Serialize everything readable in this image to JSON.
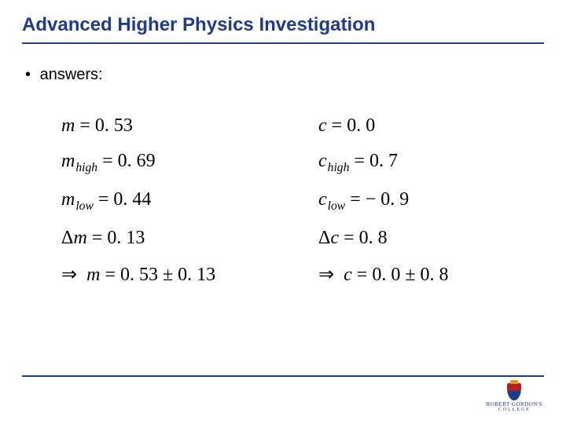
{
  "title": "Advanced Higher Physics Investigation",
  "bullet": {
    "marker": "•",
    "text": "answers:"
  },
  "colors": {
    "title": "#1f3b8f",
    "rule": "#1f3b8f",
    "text": "#000000",
    "background": "#ffffff"
  },
  "equations": {
    "left": [
      {
        "var": "m",
        "sub": "",
        "delta": false,
        "implies": false,
        "rhs": "0. 53"
      },
      {
        "var": "m",
        "sub": "high",
        "delta": false,
        "implies": false,
        "rhs": "0. 69"
      },
      {
        "var": "m",
        "sub": "low",
        "delta": false,
        "implies": false,
        "rhs": "0. 44"
      },
      {
        "var": "m",
        "sub": "",
        "delta": true,
        "implies": false,
        "rhs": "0. 13"
      },
      {
        "var": "m",
        "sub": "",
        "delta": false,
        "implies": true,
        "rhs": "0. 53 ± 0. 13"
      }
    ],
    "right": [
      {
        "var": "c",
        "sub": "",
        "delta": false,
        "implies": false,
        "rhs": "0. 0"
      },
      {
        "var": "c",
        "sub": "high",
        "delta": false,
        "implies": false,
        "rhs": "0. 7"
      },
      {
        "var": "c",
        "sub": "low",
        "delta": false,
        "implies": false,
        "rhs": "− 0. 9"
      },
      {
        "var": "c",
        "sub": "",
        "delta": true,
        "implies": false,
        "rhs": "0. 8"
      },
      {
        "var": "c",
        "sub": "",
        "delta": false,
        "implies": true,
        "rhs": "0. 0 ± 0. 8"
      }
    ]
  },
  "logo": {
    "line1": "ROBERT GORDON'S",
    "line2": "COLLEGE"
  }
}
